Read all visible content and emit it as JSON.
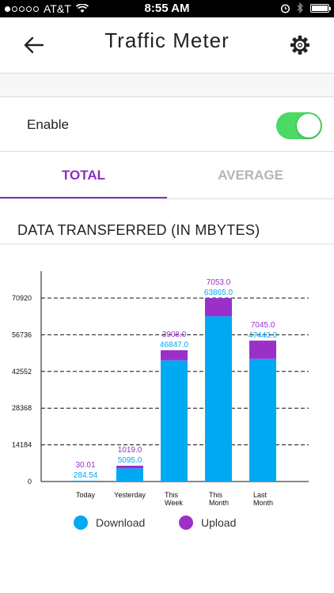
{
  "status_bar": {
    "carrier": "AT&T",
    "time": "8:55 AM",
    "signal_dots": [
      true,
      false,
      false,
      false,
      false
    ]
  },
  "header": {
    "title": "Traffic Meter",
    "back_icon": "back-arrow-icon",
    "settings_icon": "gear-icon"
  },
  "enable": {
    "label": "Enable",
    "on": true,
    "color": "#4cd964"
  },
  "tabs": [
    {
      "label": "TOTAL",
      "active": true
    },
    {
      "label": "AVERAGE",
      "active": false
    }
  ],
  "section_title": "DATA TRANSFERRED (IN MBYTES)",
  "legend": {
    "download": "Download",
    "upload": "Upload"
  },
  "colors": {
    "download": "#00aaf2",
    "upload": "#9b30c8",
    "accent": "#8a2fc2"
  },
  "chart_data": {
    "type": "bar",
    "stacked": true,
    "categories": [
      [
        "Today"
      ],
      [
        "Yesterday"
      ],
      [
        "This",
        "Week"
      ],
      [
        "This",
        "Month"
      ],
      [
        "Last",
        "Month"
      ]
    ],
    "series": [
      {
        "name": "Download",
        "values": [
          284.54,
          5095.0,
          46847.0,
          63865.0,
          47443.0
        ]
      },
      {
        "name": "Upload",
        "values": [
          30.01,
          1019.0,
          3908.0,
          7053.0,
          7045.0
        ]
      }
    ],
    "download_labels": [
      "284.54",
      "5095.0",
      "46847.0",
      "63865.0",
      "47443.0"
    ],
    "upload_labels": [
      "30.01",
      "1019.0",
      "3908.0",
      "7053.0",
      "7045.0"
    ],
    "yticks": [
      0,
      14184,
      28368,
      42552,
      56736,
      70920
    ],
    "ylim": [
      0,
      70920
    ],
    "grid": true
  }
}
